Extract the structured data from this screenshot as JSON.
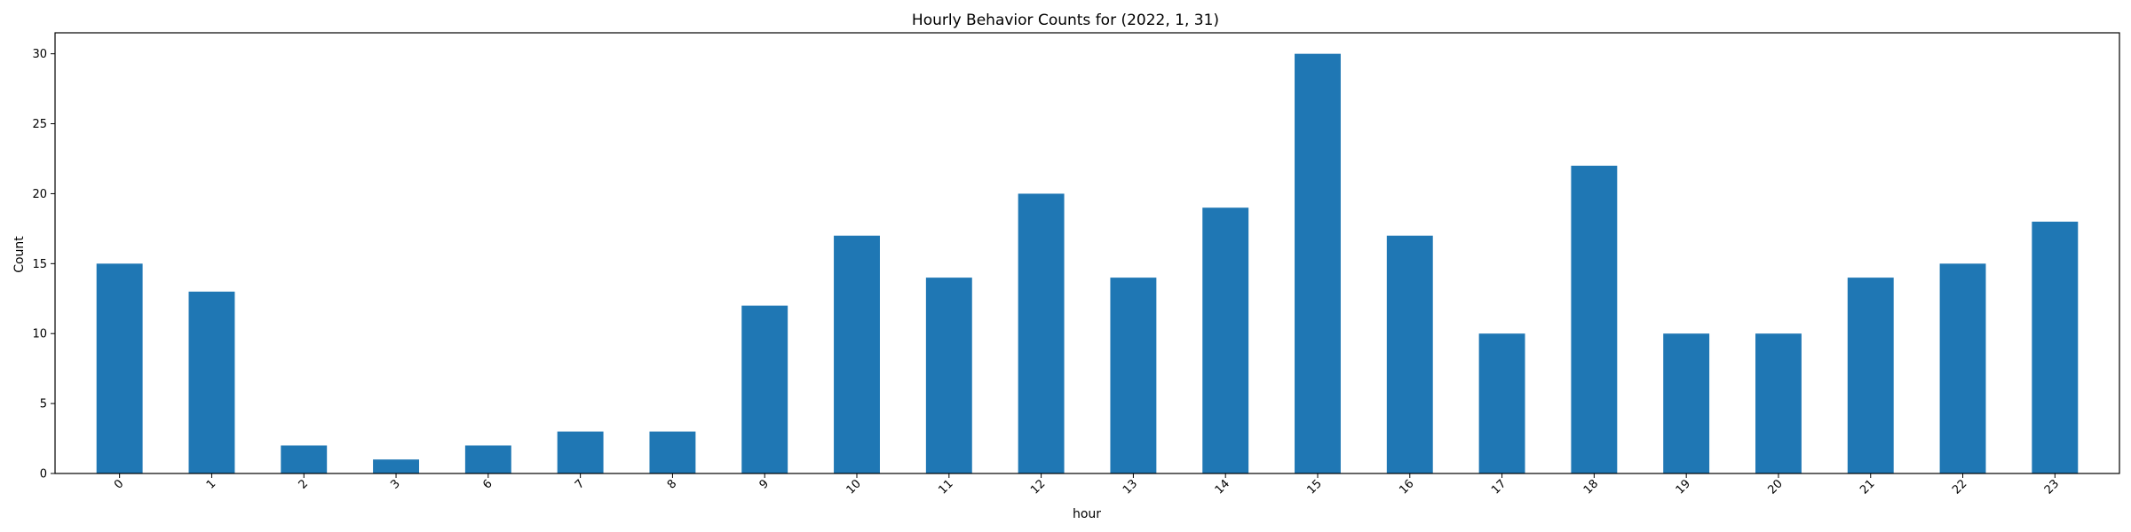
{
  "chart_data": {
    "type": "bar",
    "title": "Hourly Behavior Counts for (2022, 1, 31)",
    "xlabel": "hour",
    "ylabel": "Count",
    "categories": [
      "0",
      "1",
      "2",
      "3",
      "6",
      "7",
      "8",
      "9",
      "10",
      "11",
      "12",
      "13",
      "14",
      "15",
      "16",
      "17",
      "18",
      "19",
      "20",
      "21",
      "22",
      "23"
    ],
    "values": [
      15,
      13,
      2,
      1,
      2,
      3,
      3,
      12,
      17,
      14,
      20,
      14,
      19,
      30,
      17,
      10,
      22,
      10,
      10,
      14,
      15,
      18
    ],
    "ylim": [
      0,
      31.5
    ],
    "yticks": [
      0,
      5,
      10,
      15,
      20,
      25,
      30
    ],
    "bar_color": "#1f77b4",
    "grid": false,
    "legend": "none",
    "xtick_rotation": 45
  }
}
